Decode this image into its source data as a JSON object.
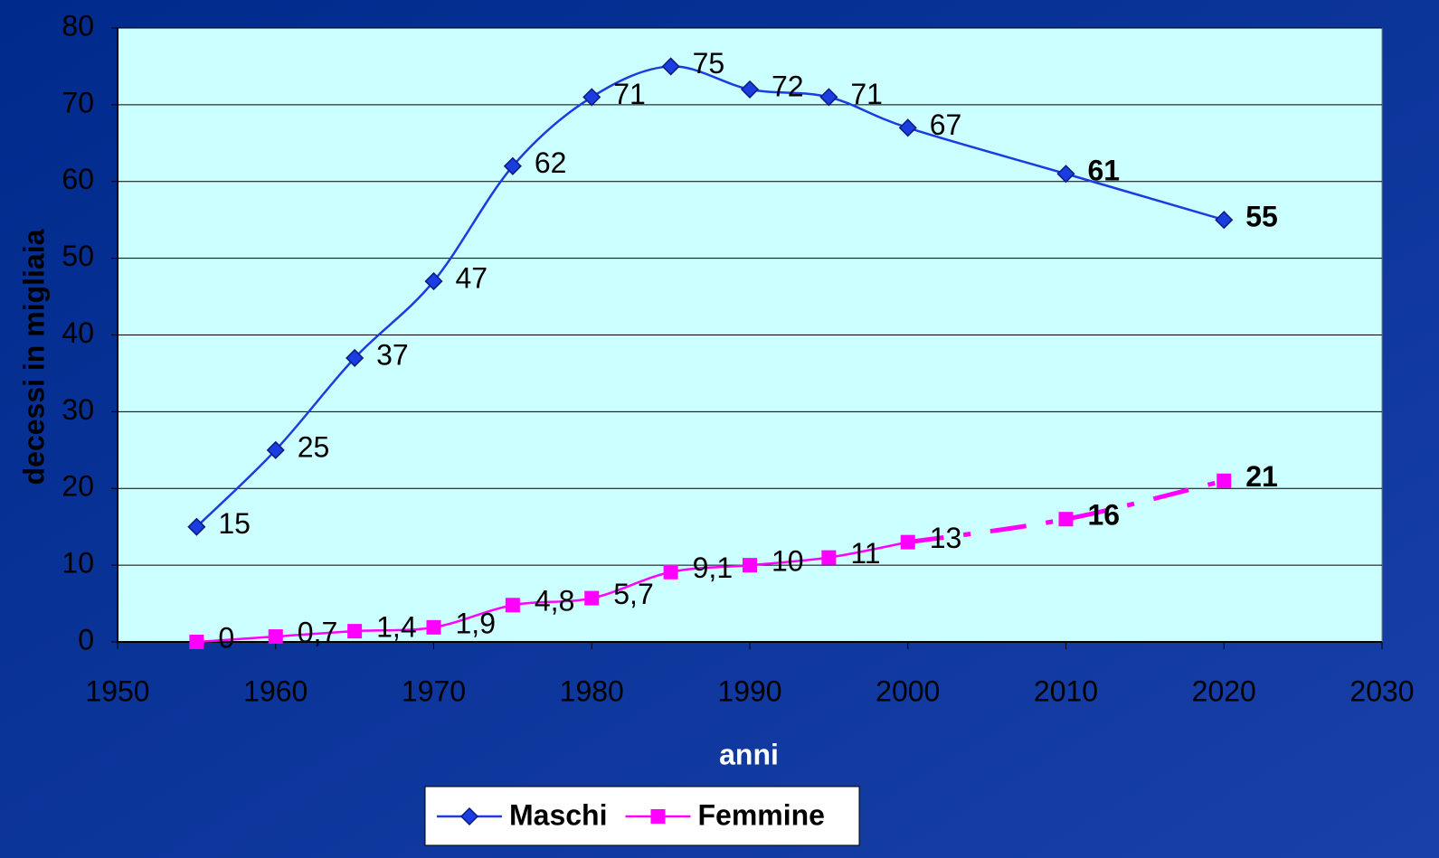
{
  "chart_data": {
    "type": "line",
    "x_label": "anni",
    "y_label": "decessi in migliaia",
    "x": [
      1955,
      1960,
      1965,
      1970,
      1975,
      1980,
      1985,
      1990,
      1995,
      2000,
      2010,
      2020
    ],
    "series": [
      {
        "name": "Maschi",
        "color": "#1a3de0",
        "marker": "diamond",
        "values": [
          15,
          25,
          37,
          47,
          62,
          71,
          75,
          72,
          71,
          67,
          61,
          55
        ],
        "bold_labels_from_index": 10
      },
      {
        "name": "Femmine",
        "color": "#ff00ff",
        "marker": "square",
        "values": [
          0,
          0.7,
          1.4,
          1.9,
          4.8,
          5.7,
          9.1,
          10,
          11,
          13,
          16,
          21
        ],
        "value_labels": [
          "0",
          "0,7",
          "1,4",
          "1,9",
          "4,8",
          "5,7",
          "9,1",
          "10",
          "11",
          "13",
          "16",
          "21"
        ],
        "bold_labels_from_index": 10,
        "dash_from_index": 9
      }
    ],
    "xlim": [
      1950,
      2030
    ],
    "xticks": [
      1950,
      1960,
      1970,
      1980,
      1990,
      2000,
      2010,
      2020,
      2030
    ],
    "ylim": [
      0,
      80
    ],
    "yticks": [
      0,
      10,
      20,
      30,
      40,
      50,
      60,
      70,
      80
    ],
    "grid": true,
    "legend": "bottom"
  }
}
